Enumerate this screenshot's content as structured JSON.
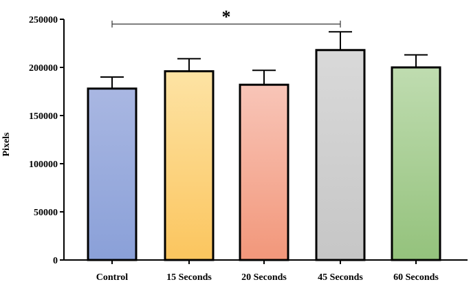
{
  "chart_data": {
    "type": "bar",
    "title": "",
    "xlabel": "",
    "ylabel": "Pixels",
    "ylim": [
      0,
      250000
    ],
    "yticks": [
      0,
      50000,
      100000,
      150000,
      200000,
      250000
    ],
    "categories": [
      "Control",
      "15 Seconds",
      "20 Seconds",
      "45 Seconds",
      "60 Seconds"
    ],
    "values": [
      178000,
      196000,
      182000,
      218000,
      200000
    ],
    "errors": [
      12000,
      13000,
      15000,
      19000,
      13000
    ],
    "colors_top": [
      "#a9b7e2",
      "#fde3a4",
      "#f8c5b8",
      "#d9d9d9",
      "#bfdcb0"
    ],
    "colors_bottom": [
      "#8aa0d8",
      "#fbc55e",
      "#f2977a",
      "#c6c6c6",
      "#94c27c"
    ],
    "grid": false,
    "significance": {
      "from": 0,
      "to": 3,
      "label": "*",
      "y": 245000
    }
  }
}
